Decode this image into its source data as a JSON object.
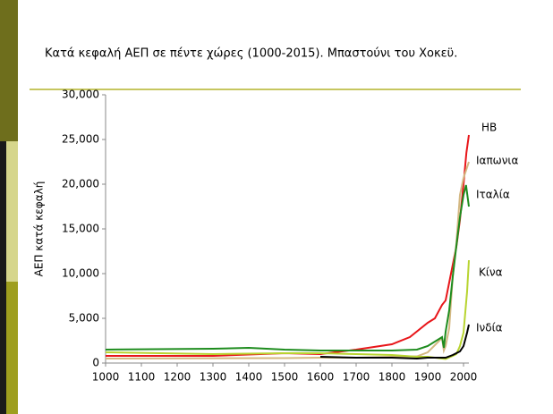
{
  "chart_data": {
    "type": "line",
    "title": "Κατά κεφαλή ΑΕΠ σε πέντε χώρες (1000-2015). Μπαστούνι του Χοκεϋ.",
    "y_label": "ΑΕΠ κατά κεφαλή",
    "xlim": [
      1000,
      2015
    ],
    "xticks": [
      1000,
      1100,
      1200,
      1300,
      1400,
      1500,
      1600,
      1700,
      1800,
      1900,
      2000
    ],
    "ylim": [
      0,
      30000
    ],
    "yticks": [
      0,
      {
        "value": 5000,
        "label": "5,000"
      },
      {
        "value": 10000,
        "label": "10,000"
      },
      {
        "value": 15000,
        "label": "15,000"
      },
      {
        "value": 20000,
        "label": "20,000"
      },
      {
        "value": 25000,
        "label": "25,000"
      },
      {
        "value": 30000,
        "label": "30,000"
      }
    ],
    "grid": false,
    "series": [
      {
        "name": "ΗΒ",
        "color": "#e8161a",
        "x": [
          1000,
          1300,
          1500,
          1600,
          1700,
          1800,
          1850,
          1900,
          1920,
          1940,
          1950,
          1960,
          1970,
          1980,
          1990,
          2000,
          2008,
          2015
        ],
        "values": [
          800,
          800,
          1100,
          1000,
          1500,
          2100,
          2900,
          4500,
          5000,
          6500,
          7000,
          9000,
          11000,
          13000,
          16000,
          20000,
          23500,
          25500
        ]
      },
      {
        "name": "Ιαπωνια",
        "color": "#d4b882",
        "x": [
          1000,
          1500,
          1600,
          1700,
          1800,
          1870,
          1900,
          1940,
          1945,
          1950,
          1960,
          1970,
          1980,
          1990,
          2000,
          2010,
          2015
        ],
        "values": [
          500,
          550,
          600,
          600,
          700,
          750,
          1200,
          2800,
          1400,
          1900,
          3900,
          9700,
          13400,
          18800,
          20700,
          21900,
          22500
        ]
      },
      {
        "name": "Ιταλία",
        "color": "#1e8c1e",
        "x": [
          1000,
          1300,
          1400,
          1500,
          1600,
          1700,
          1800,
          1870,
          1900,
          1940,
          1945,
          1950,
          1960,
          1970,
          1980,
          1990,
          2000,
          2007,
          2015
        ],
        "values": [
          1500,
          1600,
          1700,
          1500,
          1400,
          1400,
          1400,
          1500,
          1900,
          2900,
          1700,
          3500,
          5900,
          9700,
          13100,
          16300,
          18800,
          19900,
          17500
        ]
      },
      {
        "name": "Κίνα",
        "color": "#b8d430",
        "x": [
          1000,
          1300,
          1500,
          1600,
          1700,
          1800,
          1870,
          1900,
          1950,
          1970,
          1980,
          1990,
          2000,
          2010,
          2015
        ],
        "values": [
          1200,
          1000,
          1100,
          1100,
          1000,
          900,
          700,
          700,
          450,
          800,
          1000,
          1900,
          3400,
          8000,
          11500
        ]
      },
      {
        "name": "Ινδία",
        "color": "#000000",
        "x": [
          1600,
          1700,
          1800,
          1870,
          1900,
          1950,
          1970,
          1990,
          2000,
          2010,
          2015
        ],
        "values": [
          700,
          600,
          600,
          500,
          600,
          600,
          900,
          1300,
          1900,
          3400,
          4300
        ]
      }
    ]
  }
}
